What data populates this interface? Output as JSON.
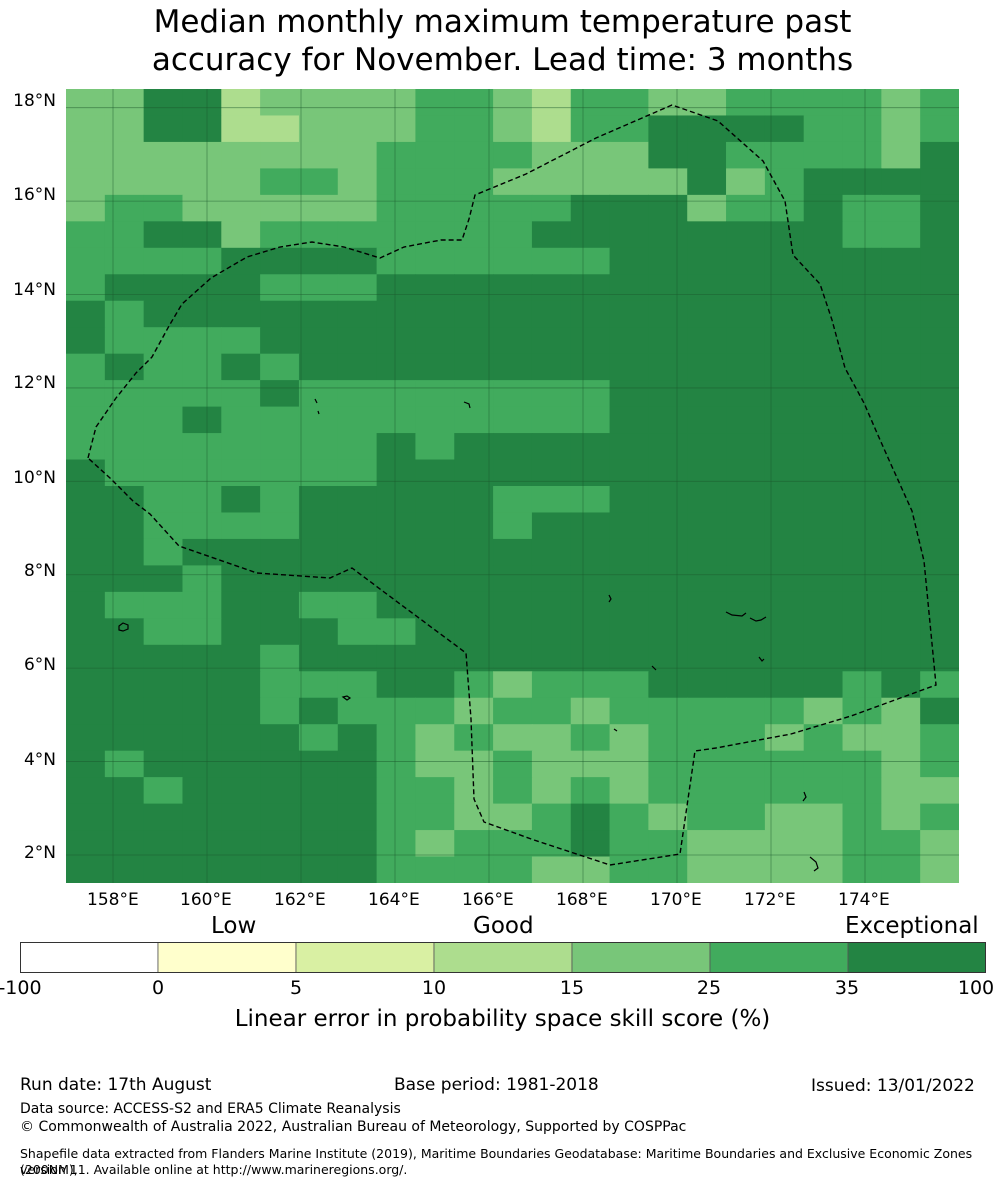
{
  "title": {
    "line1": "Median monthly maximum temperature past",
    "line2": "accuracy for November. Lead time: 3 months"
  },
  "map": {
    "lat_labels": [
      "18°N",
      "16°N",
      "14°N",
      "12°N",
      "10°N",
      "8°N",
      "6°N",
      "4°N",
      "2°N"
    ],
    "lon_labels": [
      "158°E",
      "160°E",
      "162°E",
      "164°E",
      "166°E",
      "168°E",
      "170°E",
      "172°E",
      "174°E"
    ],
    "lat_range": [
      1.4,
      18.4
    ],
    "lon_range": [
      157.0,
      176.0
    ],
    "grid": true,
    "cell_palette": [
      "#ffffcc",
      "#d9f0a3",
      "#addd8e",
      "#78c679",
      "#41ab5d",
      "#238443"
    ],
    "cell_grid": [
      "33552333344324433444434",
      "33552233344324455554434",
      "33333333444433355444435",
      "33333443444333335345555",
      "34433333444445553445445",
      "44553444444455555555445",
      "44445555444444555555555",
      "45555444555555555555555",
      "54555555555555555555555",
      "54444555555555555555555",
      "45445455555555555555555",
      "44444544444444555555555",
      "44454444444444555555555",
      "44444444545555555555555",
      "54444444555555555555555",
      "55445455555444555555555",
      "55444455555455555555555",
      "55455555555555555555555",
      "55545555555555555555555",
      "54445544555555555555555",
      "55445554455555555555555",
      "55555455555555555555555",
      "55555444554344455555454",
      "55555454443443444443435",
      "55555545434334344434334",
      "54555555433433344444434",
      "55455555443434344444433",
      "55555555443345434433434",
      "55555555434445443333443",
      "55555555444433443333443"
    ]
  },
  "colorbar": {
    "headings": [
      "Low",
      "Good",
      "Exceptional"
    ],
    "tick_labels": [
      "-100",
      "0",
      "5",
      "10",
      "15",
      "25",
      "35",
      "100"
    ],
    "colors": [
      "#ffffff",
      "#ffffcc",
      "#d9f0a3",
      "#addd8e",
      "#78c679",
      "#41ab5d",
      "#238443"
    ],
    "label": "Linear error in probability space skill score (%)"
  },
  "footer": {
    "run_date": "Run date: 17th August",
    "base_period": "Base period: 1981-2018",
    "issued": "Issued: 13/01/2022",
    "data_source": "Data source: ACCESS-S2 and ERA5 Climate Reanalysis",
    "copyright": "© Commonwealth of Australia 2022, Australian Bureau of Meteorology, Supported by COSPPac",
    "shapefile_line1": "Shapefile data extracted from Flanders Marine Institute (2019), Maritime Boundaries Geodatabase: Maritime Boundaries and Exclusive Economic Zones (200NM),",
    "shapefile_line2": "version 11. Available online at http://www.marineregions.org/."
  }
}
